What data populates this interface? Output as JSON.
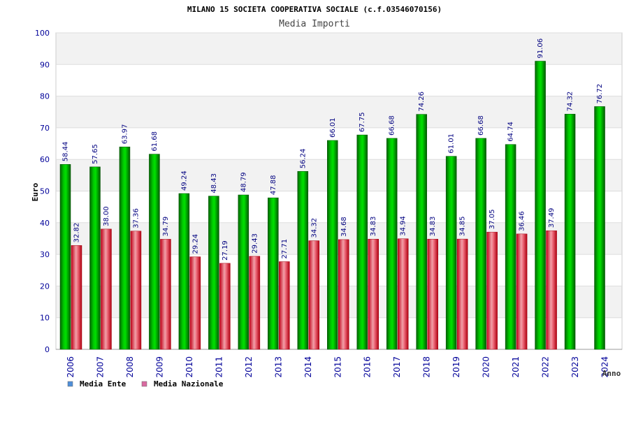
{
  "chart_data": {
    "type": "bar",
    "title": "MILANO 15 SOCIETA COOPERATIVA SOCIALE (c.f.03546070156)",
    "subtitle": "Media Importi",
    "xlabel": "Anno",
    "ylabel": "Euro",
    "ylim": [
      0,
      100
    ],
    "yticks": [
      0,
      10,
      20,
      30,
      40,
      50,
      60,
      70,
      80,
      90,
      100
    ],
    "grid": true,
    "legend_position": "bottom-left",
    "categories": [
      "2006",
      "2007",
      "2008",
      "2009",
      "2010",
      "2011",
      "2012",
      "2013",
      "2014",
      "2015",
      "2016",
      "2017",
      "2018",
      "2019",
      "2020",
      "2021",
      "2022",
      "2023",
      "2024"
    ],
    "series": [
      {
        "name": "Media Ente",
        "legend_color": "#4f8fd9",
        "bar_color": "#00a000",
        "values": [
          58.44,
          57.65,
          63.97,
          61.68,
          49.24,
          48.43,
          48.79,
          47.88,
          56.24,
          66.01,
          67.75,
          66.68,
          74.26,
          61.01,
          66.68,
          64.74,
          91.06,
          74.32,
          76.72
        ],
        "labels": [
          "58.44",
          "57.65",
          "63.97",
          "61.68",
          "49.24",
          "48.43",
          "48.79",
          "47.88",
          "56.24",
          "66.01",
          "67.75",
          "66.68",
          "74.26",
          "61.01",
          "66.68",
          "64.74",
          "91.06",
          "74.32",
          "76.72"
        ]
      },
      {
        "name": "Media Nazionale",
        "legend_color": "#d96aa0",
        "bar_color": "#e0303c",
        "values": [
          32.82,
          38.0,
          37.36,
          34.79,
          29.24,
          27.19,
          29.43,
          27.71,
          34.32,
          34.68,
          34.83,
          34.94,
          34.83,
          34.85,
          37.05,
          36.46,
          37.49,
          null,
          null
        ],
        "labels": [
          "32.82",
          "38.00",
          "37.36",
          "34.79",
          "29.24",
          "27.19",
          "29.43",
          "27.71",
          "34.32",
          "34.68",
          "34.83",
          "34.94",
          "34.83",
          "34.85",
          "37.05",
          "36.46",
          "37.49",
          null,
          null
        ]
      }
    ]
  }
}
